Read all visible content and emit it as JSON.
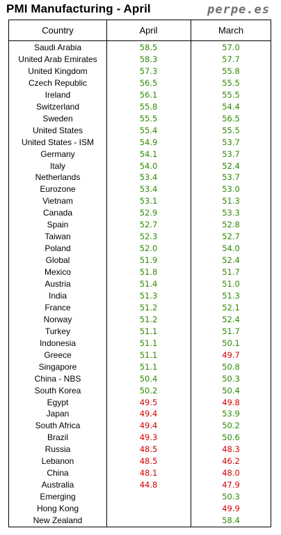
{
  "header": {
    "title": "PMI Manufacturing - April",
    "brand": "perpe.es"
  },
  "colors": {
    "positive": "#2e8b00",
    "negative": "#d40000",
    "neutral": "#000000"
  },
  "chart_data": {
    "type": "table",
    "columns": [
      "Country",
      "April",
      "March"
    ],
    "rows": [
      {
        "country": "Saudi Arabia",
        "april": "58.5",
        "march": "57.0"
      },
      {
        "country": "United Arab Emirates",
        "april": "58.3",
        "march": "57.7"
      },
      {
        "country": "United Kingdom",
        "april": "57.3",
        "march": "55.8"
      },
      {
        "country": "Czech Republic",
        "april": "56.5",
        "march": "55.5"
      },
      {
        "country": "Ireland",
        "april": "56.1",
        "march": "55.5"
      },
      {
        "country": "Switzerland",
        "april": "55.8",
        "march": "54.4"
      },
      {
        "country": "Sweden",
        "april": "55.5",
        "march": "56.5"
      },
      {
        "country": "United States",
        "april": "55.4",
        "march": "55.5"
      },
      {
        "country": "United States - ISM",
        "april": "54.9",
        "march": "53.7"
      },
      {
        "country": "Germany",
        "april": "54.1",
        "march": "53.7"
      },
      {
        "country": "Italy",
        "april": "54.0",
        "march": "52.4"
      },
      {
        "country": "Netherlands",
        "april": "53.4",
        "march": "53.7"
      },
      {
        "country": "Eurozone",
        "april": "53.4",
        "march": "53.0"
      },
      {
        "country": "Vietnam",
        "april": "53.1",
        "march": "51.3"
      },
      {
        "country": "Canada",
        "april": "52.9",
        "march": "53.3"
      },
      {
        "country": "Spain",
        "april": "52.7",
        "march": "52.8"
      },
      {
        "country": "Taiwan",
        "april": "52.3",
        "march": "52.7"
      },
      {
        "country": "Poland",
        "april": "52.0",
        "march": "54.0"
      },
      {
        "country": "Global",
        "april": "51.9",
        "march": "52.4"
      },
      {
        "country": "Mexico",
        "april": "51.8",
        "march": "51.7"
      },
      {
        "country": "Austria",
        "april": "51.4",
        "march": "51.0"
      },
      {
        "country": "India",
        "april": "51.3",
        "march": "51.3"
      },
      {
        "country": "France",
        "april": "51.2",
        "march": "52.1"
      },
      {
        "country": "Norway",
        "april": "51.2",
        "march": "52.4"
      },
      {
        "country": "Turkey",
        "april": "51.1",
        "march": "51.7"
      },
      {
        "country": "Indonesia",
        "april": "51.1",
        "march": "50.1"
      },
      {
        "country": "Greece",
        "april": "51.1",
        "march": "49.7"
      },
      {
        "country": "Singapore",
        "april": "51.1",
        "march": "50.8"
      },
      {
        "country": "China - NBS",
        "april": "50.4",
        "march": "50.3"
      },
      {
        "country": "South Korea",
        "april": "50.2",
        "march": "50.4"
      },
      {
        "country": "Egypt",
        "april": "49.5",
        "march": "49.8"
      },
      {
        "country": "Japan",
        "april": "49.4",
        "march": "53.9"
      },
      {
        "country": "South Africa",
        "april": "49.4",
        "march": "50.2"
      },
      {
        "country": "Brazil",
        "april": "49.3",
        "march": "50.6"
      },
      {
        "country": "Russia",
        "april": "48.5",
        "march": "48.3"
      },
      {
        "country": "Lebanon",
        "april": "48.5",
        "march": "46.2"
      },
      {
        "country": "China",
        "april": "48.1",
        "march": "48.0"
      },
      {
        "country": "Australia",
        "april": "44.8",
        "march": "47.9"
      },
      {
        "country": "Emerging",
        "april": "",
        "march": "50.3"
      },
      {
        "country": "Hong Kong",
        "april": "",
        "march": "49.9"
      },
      {
        "country": "New Zealand",
        "april": "",
        "march": "58.4"
      }
    ]
  }
}
